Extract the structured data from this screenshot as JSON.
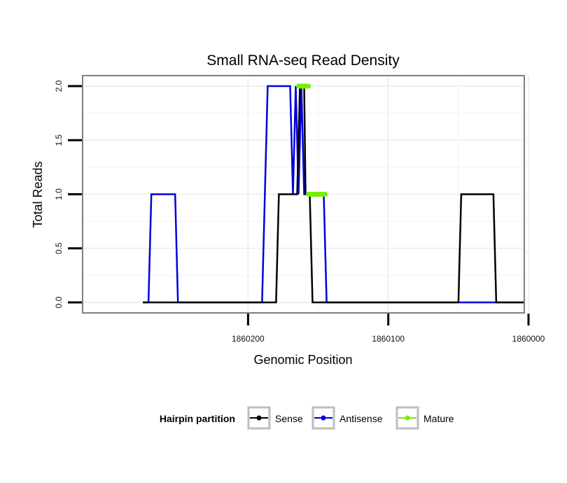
{
  "chart_data": {
    "type": "line",
    "title": "Small RNA-seq Read Density",
    "xlabel": "Genomic Position",
    "ylabel": "Total Reads",
    "xlim": [
      1860318,
      1860003
    ],
    "x_reversed": true,
    "ylim": [
      0.0,
      2.0
    ],
    "x_ticks": [
      1860200,
      1860100,
      1860000
    ],
    "x_tick_labels": [
      "1860200",
      "1860100",
      "1860000"
    ],
    "y_ticks": [
      0.0,
      0.5,
      1.0,
      1.5,
      2.0
    ],
    "y_tick_labels": [
      "0.0",
      "0.5",
      "1.0",
      "1.5",
      "2.0"
    ],
    "grid": true,
    "legend": {
      "title": "Hairpin partition",
      "position": "bottom",
      "entries": [
        "Sense",
        "Antisense",
        "Mature"
      ]
    },
    "series": [
      {
        "name": "Sense",
        "color": "#000000",
        "x": [
          1860275,
          1860225,
          1860224,
          1860180,
          1860178,
          1860165,
          1860163,
          1860160,
          1860159,
          1860156,
          1860154,
          1860050,
          1860048,
          1860025,
          1860023,
          1860003
        ],
        "y": [
          0,
          0,
          0,
          0,
          1,
          1,
          2,
          2,
          1,
          1,
          0,
          0,
          1,
          1,
          0,
          0
        ]
      },
      {
        "name": "Antisense",
        "color": "#0000dd",
        "x": [
          1860275,
          1860271,
          1860269,
          1860252,
          1860250,
          1860232,
          1860190,
          1860188,
          1860186,
          1860170,
          1860168,
          1860166,
          1860164,
          1860162,
          1860160,
          1860158,
          1860157,
          1860155,
          1860146,
          1860144,
          1860003
        ],
        "y": [
          0,
          0,
          1,
          1,
          0,
          0,
          0,
          1,
          2,
          2,
          1,
          2,
          1,
          2,
          1,
          1,
          1,
          1,
          1,
          0,
          0
        ]
      },
      {
        "name": "Mature",
        "color": "#77ee00",
        "segments": [
          {
            "x": [
              1860164,
              1860157
            ],
            "y": [
              2,
              2
            ]
          },
          {
            "x": [
              1860157,
              1860145
            ],
            "y": [
              1,
              1
            ]
          }
        ]
      }
    ]
  }
}
